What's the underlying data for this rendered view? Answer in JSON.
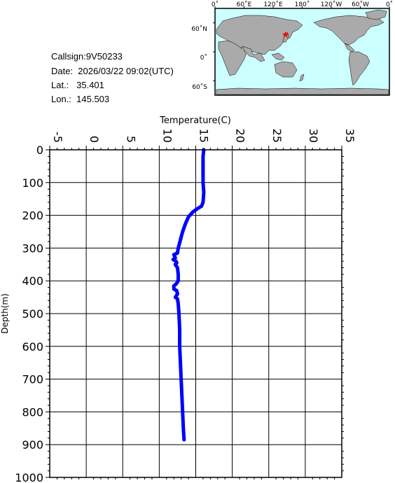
{
  "header": {
    "callsign": "Callsign:9V50233",
    "date": "Date:  2026/03/22 09:02(UTC)",
    "lat": "Lat.:   35.401",
    "lon": "Lon.:  145.503"
  },
  "map": {
    "lon_ticks": [
      "0˚",
      "60˚E",
      "120˚E",
      "180˚",
      "120˚W",
      "60˚W",
      "0˚"
    ],
    "lat_ticks": [
      "60˚N",
      "0˚",
      "60˚S"
    ],
    "ocean_color": "#ccffff",
    "land_color": "#aaaaaa",
    "marker_color": "#ff0000",
    "station": {
      "lon": 145.503,
      "lat": 35.401
    }
  },
  "chart_data": {
    "type": "line",
    "xlabel": "Temperature(C)",
    "ylabel": "Depth(m)",
    "xlim": [
      -5,
      35
    ],
    "ylim": [
      0,
      1000
    ],
    "y_inverted": true,
    "x_ticks": [
      "-5",
      "0",
      "5",
      "10",
      "15",
      "20",
      "25",
      "30",
      "35"
    ],
    "y_ticks": [
      "0",
      "100",
      "200",
      "300",
      "400",
      "500",
      "600",
      "700",
      "800",
      "900",
      "1000"
    ],
    "grid": true,
    "series": [
      {
        "color": "#0000ff",
        "points": [
          [
            16.1,
            0
          ],
          [
            16.0,
            20
          ],
          [
            16.0,
            60
          ],
          [
            16.0,
            100
          ],
          [
            16.1,
            130
          ],
          [
            16.0,
            160
          ],
          [
            15.8,
            172
          ],
          [
            15.2,
            180
          ],
          [
            14.6,
            190
          ],
          [
            14.0,
            205
          ],
          [
            13.6,
            225
          ],
          [
            13.2,
            250
          ],
          [
            12.9,
            275
          ],
          [
            12.6,
            300
          ],
          [
            12.5,
            315
          ],
          [
            12.0,
            320
          ],
          [
            12.2,
            330
          ],
          [
            11.9,
            335
          ],
          [
            12.3,
            340
          ],
          [
            12.4,
            345
          ],
          [
            12.2,
            350
          ],
          [
            12.5,
            360
          ],
          [
            12.6,
            380
          ],
          [
            12.6,
            400
          ],
          [
            12.3,
            410
          ],
          [
            12.0,
            415
          ],
          [
            12.0,
            425
          ],
          [
            12.4,
            430
          ],
          [
            12.5,
            440
          ],
          [
            12.2,
            450
          ],
          [
            12.5,
            455
          ],
          [
            12.6,
            470
          ],
          [
            12.7,
            500
          ],
          [
            12.8,
            550
          ],
          [
            12.8,
            600
          ],
          [
            12.9,
            650
          ],
          [
            13.0,
            700
          ],
          [
            13.1,
            750
          ],
          [
            13.2,
            800
          ],
          [
            13.3,
            850
          ],
          [
            13.4,
            885
          ]
        ]
      }
    ]
  }
}
